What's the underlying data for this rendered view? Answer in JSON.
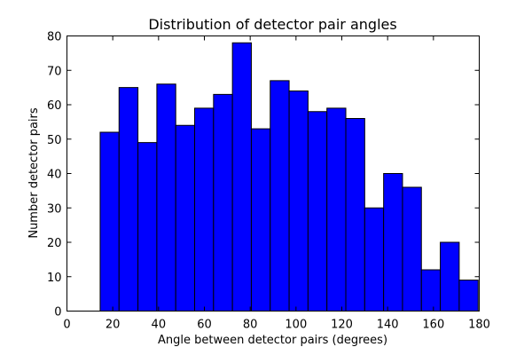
{
  "chart_data": {
    "type": "bar",
    "title": "Distribution of detector pair angles",
    "xlabel": "Angle between detector pairs (degrees)",
    "ylabel": "Number detector pairs",
    "xlim": [
      0,
      180
    ],
    "ylim": [
      0,
      80
    ],
    "xticks": [
      0,
      20,
      40,
      60,
      80,
      100,
      120,
      140,
      160,
      180
    ],
    "yticks": [
      0,
      10,
      20,
      30,
      40,
      50,
      60,
      70,
      80
    ],
    "bin_edges": [
      14.5,
      22.75,
      31.0,
      39.25,
      47.5,
      55.75,
      64.0,
      72.25,
      80.5,
      88.75,
      97.0,
      105.25,
      113.5,
      121.75,
      130.0,
      138.25,
      146.5,
      154.75,
      163.0,
      171.25,
      179.5
    ],
    "values": [
      52,
      65,
      49,
      66,
      54,
      59,
      63,
      78,
      53,
      67,
      64,
      58,
      59,
      56,
      30,
      40,
      36,
      12,
      20,
      9
    ],
    "bar_color": "#0000ff",
    "edge_color": "#000000",
    "grid": false
  }
}
